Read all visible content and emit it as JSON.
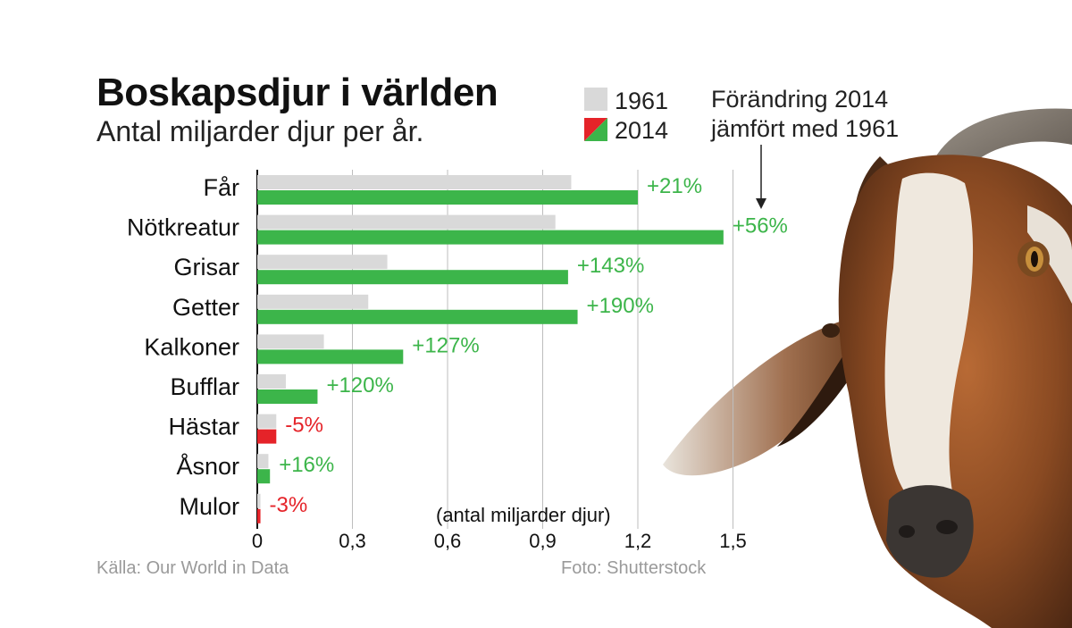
{
  "chart_data": {
    "type": "bar",
    "orientation": "horizontal",
    "title": "Boskapsdjur i världen",
    "subtitle": "Antal miljarder djur per år.",
    "xlabel": "(antal miljarder djur)",
    "xlim": [
      0,
      1.5
    ],
    "xticks": [
      "0",
      "0,3",
      "0,6",
      "0,9",
      "1,2",
      "1,5"
    ],
    "xtick_values": [
      0,
      0.3,
      0.6,
      0.9,
      1.2,
      1.5
    ],
    "grid": "vertical",
    "categories": [
      "Får",
      "Nötkreatur",
      "Grisar",
      "Getter",
      "Kalkoner",
      "Bufflar",
      "Hästar",
      "Åsnor",
      "Mulor"
    ],
    "series": [
      {
        "name": "1961",
        "values": [
          0.99,
          0.94,
          0.41,
          0.35,
          0.21,
          0.09,
          0.06,
          0.035,
          0.01
        ]
      },
      {
        "name": "2014",
        "values": [
          1.2,
          1.47,
          0.98,
          1.01,
          0.46,
          0.19,
          0.06,
          0.04,
          0.01
        ]
      }
    ],
    "change_labels": [
      "+21%",
      "+56%",
      "+143%",
      "+190%",
      "+127%",
      "+120%",
      "-5%",
      "+16%",
      "-3%"
    ],
    "legend_position": "top",
    "colors": {
      "1961": "#d9d9d9",
      "2014_increase": "#3cb54a",
      "2014_decrease": "#e52329",
      "positive_text": "#3cb54a",
      "negative_text": "#e52329"
    },
    "annotation": {
      "line1": "Förändring 2014",
      "line2": "jämfört med 1961"
    }
  },
  "footer": {
    "source": "Källa: Our World in Data",
    "photo": "Foto: Shutterstock"
  },
  "illustration": {
    "icon": "goat-head-icon"
  }
}
